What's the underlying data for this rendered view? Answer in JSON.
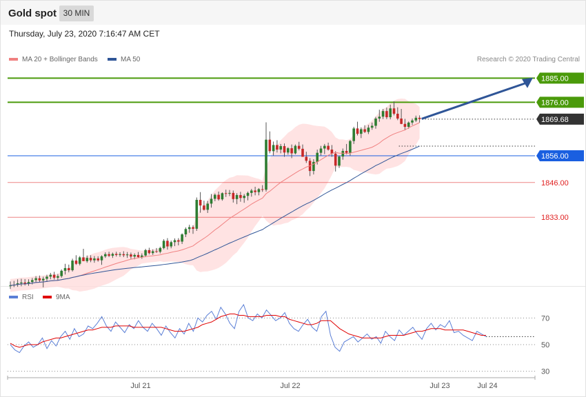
{
  "header": {
    "title": "Gold spot",
    "timeframe": "30 MIN",
    "datetime": "Thursday, July 23, 2020 7:16:47 AM CET"
  },
  "legend": {
    "main": [
      {
        "label": "MA 20 + Bollinger Bands",
        "color": "#f08080"
      },
      {
        "label": "MA 50",
        "color": "#2f5597"
      }
    ],
    "rsi": [
      {
        "label": "RSI",
        "color": "#5b7fd6"
      },
      {
        "label": "9MA",
        "color": "#e00000"
      }
    ],
    "credit": "Research © 2020 Trading Central"
  },
  "chart_data": {
    "type": "candlestick",
    "instrument": "Gold spot",
    "timeframe": "30 MIN",
    "x_ticks": [
      "Jul 21",
      "Jul 22",
      "Jul 23",
      "Jul 24"
    ],
    "price_levels": [
      {
        "value": 1885.0,
        "label": "1885.00",
        "kind": "resistance",
        "color": "#4a9a0a"
      },
      {
        "value": 1876.0,
        "label": "1876.00",
        "kind": "resistance",
        "color": "#4a9a0a"
      },
      {
        "value": 1869.68,
        "label": "1869.68",
        "kind": "last",
        "color": "#333333"
      },
      {
        "value": 1856.0,
        "label": "1856.00",
        "kind": "pivot",
        "color": "#1a5fe0"
      },
      {
        "value": 1846.0,
        "label": "1846.00",
        "kind": "support",
        "color": "#e02020"
      },
      {
        "value": 1833.0,
        "label": "1833.00",
        "kind": "support",
        "color": "#e02020"
      }
    ],
    "price_range": [
      1806,
      1890
    ],
    "candles_ohlc": [
      [
        1807.5,
        1809,
        1806.2,
        1807.5
      ],
      [
        1807.5,
        1809.2,
        1806.9,
        1807.8
      ],
      [
        1807.8,
        1809.8,
        1807,
        1808.3
      ],
      [
        1808.3,
        1810,
        1807.2,
        1808.6
      ],
      [
        1808.6,
        1809.9,
        1807.5,
        1808.2
      ],
      [
        1808.2,
        1809.8,
        1807.4,
        1808.8
      ],
      [
        1808.8,
        1810.3,
        1807.9,
        1809.5
      ],
      [
        1809.5,
        1811,
        1808.6,
        1810.2
      ],
      [
        1810.2,
        1811.2,
        1808.8,
        1809.4
      ],
      [
        1809.4,
        1810.8,
        1806.8,
        1810
      ],
      [
        1810,
        1811.5,
        1809,
        1810.8
      ],
      [
        1810.8,
        1812.2,
        1809.8,
        1811.5
      ],
      [
        1811.5,
        1812.6,
        1809.7,
        1810.4
      ],
      [
        1810.4,
        1811.8,
        1809.3,
        1811
      ],
      [
        1811,
        1813.5,
        1810.4,
        1813
      ],
      [
        1813,
        1815.6,
        1811.6,
        1814
      ],
      [
        1814,
        1815.3,
        1812.4,
        1813.2
      ],
      [
        1813.2,
        1817.5,
        1812.7,
        1816.8
      ],
      [
        1816.8,
        1818.8,
        1815.2,
        1815.6
      ],
      [
        1815.6,
        1818.5,
        1815,
        1818
      ],
      [
        1818,
        1821.2,
        1817.2,
        1816.6
      ],
      [
        1816.6,
        1818.7,
        1816,
        1817.8
      ],
      [
        1817.8,
        1818.8,
        1816.2,
        1816.9
      ],
      [
        1816.9,
        1818.5,
        1816,
        1817.6
      ],
      [
        1817.6,
        1818.4,
        1816.4,
        1816.9
      ],
      [
        1816.9,
        1818.8,
        1815.2,
        1818.4
      ],
      [
        1818.4,
        1819.9,
        1817.8,
        1819.2
      ],
      [
        1819.2,
        1820.1,
        1818.1,
        1818.6
      ],
      [
        1818.6,
        1819.8,
        1817.8,
        1819.3
      ],
      [
        1819.3,
        1820.1,
        1818.3,
        1818.9
      ],
      [
        1818.9,
        1819.9,
        1818.2,
        1819.2
      ],
      [
        1819.2,
        1820.3,
        1818.1,
        1818.8
      ],
      [
        1818.8,
        1820,
        1817.8,
        1819.1
      ],
      [
        1819.1,
        1819.8,
        1817.5,
        1818.3
      ],
      [
        1818.3,
        1819.5,
        1817.3,
        1818.9
      ],
      [
        1818.9,
        1820,
        1817.8,
        1818.1
      ],
      [
        1818.1,
        1819.5,
        1817.5,
        1818.7
      ],
      [
        1818.7,
        1821.2,
        1818.1,
        1820.7
      ],
      [
        1820.7,
        1821.6,
        1819.1,
        1819.6
      ],
      [
        1819.6,
        1821,
        1818.9,
        1820.3
      ],
      [
        1820.3,
        1821.5,
        1819.7,
        1820.1
      ],
      [
        1820.1,
        1822,
        1819.5,
        1821.5
      ],
      [
        1821.5,
        1824.8,
        1821,
        1824.2
      ],
      [
        1824.2,
        1825.2,
        1820.9,
        1822.1
      ],
      [
        1822.1,
        1824.3,
        1821.4,
        1823.7
      ],
      [
        1823.7,
        1825.1,
        1822.2,
        1824.4
      ],
      [
        1824.4,
        1825.2,
        1822.5,
        1823.9
      ],
      [
        1823.9,
        1827,
        1823,
        1826.6
      ],
      [
        1826.6,
        1829.2,
        1825.6,
        1828.6
      ],
      [
        1828.6,
        1830.2,
        1827.2,
        1829.3
      ],
      [
        1829.3,
        1830,
        1826.8,
        1828.7
      ],
      [
        1828.7,
        1840.4,
        1827.9,
        1839.5
      ],
      [
        1839.5,
        1842.4,
        1834.7,
        1837.4
      ],
      [
        1837.4,
        1839.2,
        1835.5,
        1835.8
      ],
      [
        1835.8,
        1839.1,
        1834.6,
        1838.1
      ],
      [
        1838.1,
        1841.7,
        1836.6,
        1839.9
      ],
      [
        1839.9,
        1841.9,
        1839,
        1841.4
      ],
      [
        1841.4,
        1842.6,
        1839.2,
        1839.7
      ],
      [
        1839.7,
        1842.3,
        1839.2,
        1842
      ],
      [
        1842,
        1843.3,
        1840.6,
        1841.8
      ],
      [
        1841.8,
        1843.2,
        1840.9,
        1842.1
      ],
      [
        1842.1,
        1843,
        1838.5,
        1839.8
      ],
      [
        1839.8,
        1842,
        1837.9,
        1841.3
      ],
      [
        1841.3,
        1842.5,
        1838.8,
        1840.2
      ],
      [
        1840.2,
        1841.7,
        1838.4,
        1841
      ],
      [
        1841,
        1842.6,
        1839.3,
        1842.1
      ],
      [
        1842.1,
        1843.6,
        1840.7,
        1843
      ],
      [
        1843,
        1844.4,
        1841.2,
        1842.4
      ],
      [
        1842.4,
        1843.9,
        1841.2,
        1843.5
      ],
      [
        1843.5,
        1845,
        1842.5,
        1843.3
      ],
      [
        1843.3,
        1868.5,
        1842.6,
        1862
      ],
      [
        1862,
        1865.1,
        1856.9,
        1857.7
      ],
      [
        1857.7,
        1861.3,
        1856.1,
        1860
      ],
      [
        1860,
        1861.8,
        1857.2,
        1858.3
      ],
      [
        1858.3,
        1860.4,
        1856.9,
        1859.6
      ],
      [
        1859.6,
        1860.6,
        1855.6,
        1857.2
      ],
      [
        1857.2,
        1859.2,
        1856.4,
        1858.8
      ],
      [
        1858.8,
        1860.2,
        1855.1,
        1856.9
      ],
      [
        1856.9,
        1860.2,
        1856.5,
        1859.7
      ],
      [
        1859.7,
        1861.2,
        1858,
        1858.6
      ],
      [
        1858.6,
        1860.2,
        1855.6,
        1855.6
      ],
      [
        1855.6,
        1857.5,
        1853.3,
        1854.1
      ],
      [
        1854.1,
        1855.1,
        1848.4,
        1850.3
      ],
      [
        1850.3,
        1854.7,
        1849,
        1853.7
      ],
      [
        1853.7,
        1858.3,
        1852.7,
        1857.1
      ],
      [
        1857.1,
        1859.7,
        1856.1,
        1858.7
      ],
      [
        1858.7,
        1860.4,
        1856.6,
        1859.7
      ],
      [
        1859.7,
        1860.9,
        1857.9,
        1858.3
      ],
      [
        1858.3,
        1860,
        1855.6,
        1856.8
      ],
      [
        1856.8,
        1857.7,
        1850.1,
        1852.3
      ],
      [
        1852.3,
        1856.1,
        1851.4,
        1855.7
      ],
      [
        1855.7,
        1858.7,
        1854.5,
        1857.8
      ],
      [
        1857.8,
        1860.4,
        1856.5,
        1857.1
      ],
      [
        1857.1,
        1861.9,
        1856,
        1861.5
      ],
      [
        1861.5,
        1866.8,
        1860.4,
        1866.2
      ],
      [
        1866.2,
        1868.7,
        1863.6,
        1864.2
      ],
      [
        1864.2,
        1866.6,
        1862.6,
        1865.9
      ],
      [
        1865.9,
        1867.4,
        1864.5,
        1864.9
      ],
      [
        1864.9,
        1867.5,
        1864.1,
        1866.5
      ],
      [
        1866.5,
        1868.4,
        1865.7,
        1867.2
      ],
      [
        1867.2,
        1870.5,
        1866.1,
        1869.9
      ],
      [
        1869.9,
        1873.2,
        1868.7,
        1870.6
      ],
      [
        1870.6,
        1873.5,
        1869.7,
        1872.7
      ],
      [
        1872.7,
        1874,
        1869.7,
        1870.4
      ],
      [
        1870.4,
        1875.1,
        1869.6,
        1873.7
      ],
      [
        1873.7,
        1876.3,
        1871.1,
        1871.7
      ],
      [
        1871.7,
        1874.1,
        1869.3,
        1869.9
      ],
      [
        1869.9,
        1873.5,
        1867.8,
        1867.9
      ],
      [
        1867.9,
        1869.8,
        1865.5,
        1866.8
      ],
      [
        1866.8,
        1868.8,
        1866.1,
        1868.4
      ],
      [
        1868.4,
        1869.9,
        1867.5,
        1869.2
      ],
      [
        1869.2,
        1871,
        1868.6,
        1870.2
      ],
      [
        1870.2,
        1871.1,
        1868.4,
        1869.7
      ]
    ],
    "indicators": [
      "MA 20 + Bollinger Bands",
      "MA 50"
    ],
    "rsi": {
      "levels": [
        70,
        50,
        30
      ],
      "level_labels": [
        "70",
        "50",
        "30"
      ],
      "range": [
        20,
        80
      ],
      "series": [
        {
          "name": "RSI",
          "values": [
            50,
            46,
            44,
            49,
            52,
            48,
            50,
            55,
            47,
            53,
            49,
            56,
            60,
            54,
            62,
            56,
            58,
            64,
            62,
            66,
            71,
            64,
            60,
            67,
            63,
            59,
            65,
            62,
            68,
            63,
            60,
            66,
            62,
            57,
            64,
            59,
            55,
            62,
            58,
            66,
            60,
            70,
            67,
            72,
            75,
            69,
            78,
            73,
            66,
            62,
            75,
            80,
            70,
            68,
            73,
            70,
            76,
            72,
            68,
            70,
            74,
            66,
            62,
            60,
            65,
            69,
            63,
            60,
            71,
            75,
            57,
            48,
            45,
            52,
            54,
            56,
            52,
            55,
            58,
            54,
            56,
            51,
            60,
            56,
            53,
            61,
            57,
            60,
            63,
            58,
            54,
            62,
            66,
            61,
            65,
            63,
            68,
            59,
            60,
            57,
            55,
            53,
            60,
            58,
            56
          ],
          "color": "#5b7fd6"
        },
        {
          "name": "9MA",
          "values": [
            51,
            49,
            48,
            49,
            50,
            50,
            50,
            52,
            53,
            54,
            55,
            55,
            56,
            57,
            58,
            59,
            60,
            61,
            61,
            62,
            63,
            63,
            63,
            64,
            64,
            64,
            64,
            63,
            63,
            63,
            63,
            63,
            63,
            63,
            62,
            61,
            60,
            60,
            60,
            61,
            62,
            63,
            65,
            66,
            67,
            69,
            71,
            72,
            73,
            73,
            72,
            72,
            71,
            71,
            71,
            71,
            72,
            72,
            72,
            71,
            71,
            69,
            68,
            67,
            66,
            65,
            65,
            66,
            68,
            68,
            68,
            65,
            62,
            60,
            58,
            57,
            56,
            55,
            55,
            55,
            55,
            55,
            56,
            57,
            57,
            57,
            57,
            58,
            59,
            60,
            60,
            61,
            62,
            62,
            62,
            61,
            61,
            61,
            61,
            61,
            60,
            59,
            58,
            57,
            57
          ],
          "color": "#e00000"
        }
      ]
    }
  }
}
